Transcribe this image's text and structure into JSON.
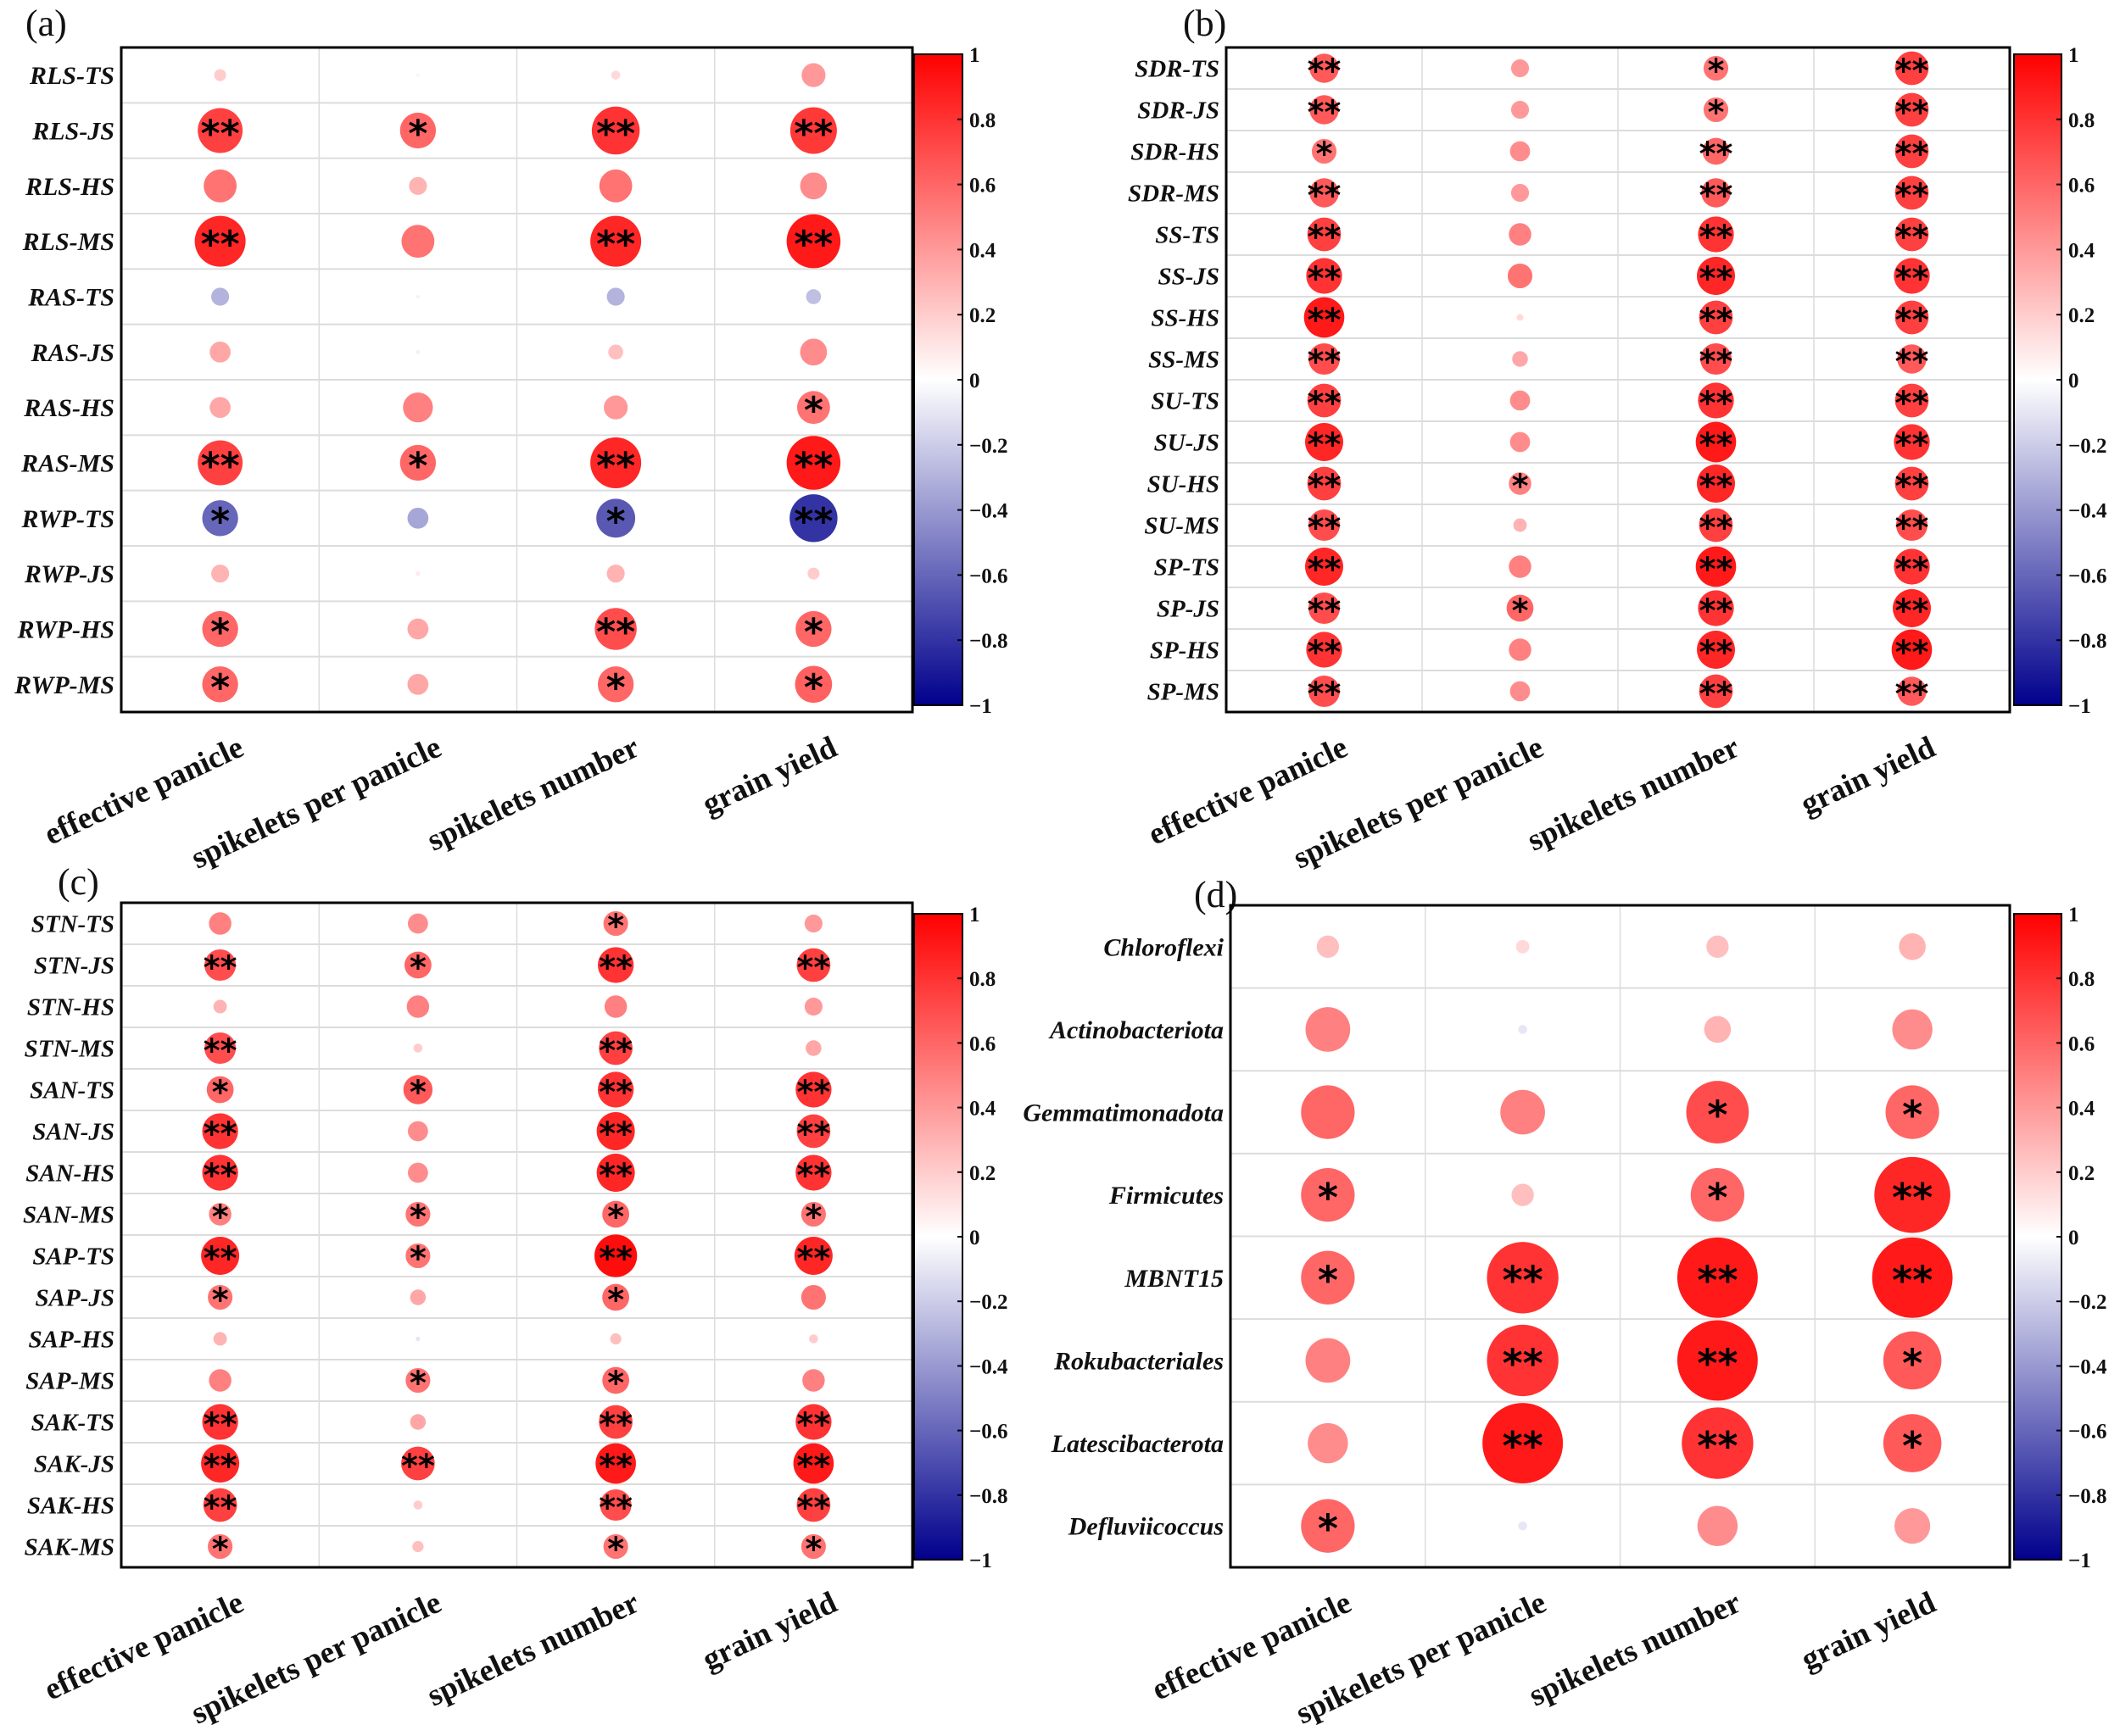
{
  "chart_data": [
    {
      "type": "bubble-correlation",
      "panel_label": "(a)",
      "columns": [
        "effective panicle",
        "spikelets per panicle",
        "spikelets number",
        "grain yield"
      ],
      "rows": [
        "RLS-TS",
        "RLS-JS",
        "RLS-HS",
        "RLS-MS",
        "RAS-TS",
        "RAS-JS",
        "RAS-HS",
        "RAS-MS",
        "RWP-TS",
        "RWP-JS",
        "RWP-HS",
        "RWP-MS"
      ],
      "values": [
        [
          0.2,
          0.05,
          0.15,
          0.4
        ],
        [
          0.75,
          0.6,
          0.8,
          0.78
        ],
        [
          0.55,
          0.3,
          0.55,
          0.45
        ],
        [
          0.85,
          0.55,
          0.85,
          0.9
        ],
        [
          -0.3,
          -0.05,
          -0.3,
          -0.25
        ],
        [
          0.35,
          0.07,
          0.25,
          0.45
        ],
        [
          0.35,
          0.5,
          0.4,
          0.55
        ],
        [
          0.75,
          0.6,
          0.85,
          0.9
        ],
        [
          -0.6,
          -0.35,
          -0.65,
          -0.8
        ],
        [
          0.3,
          0.08,
          0.3,
          0.2
        ],
        [
          0.6,
          0.35,
          0.7,
          0.6
        ],
        [
          0.6,
          0.35,
          0.6,
          0.62
        ]
      ],
      "significance": [
        [
          "",
          "",
          "",
          ""
        ],
        [
          "**",
          "*",
          "**",
          "**"
        ],
        [
          "",
          "",
          "",
          ""
        ],
        [
          "**",
          "",
          "**",
          "**"
        ],
        [
          "",
          "",
          "",
          ""
        ],
        [
          "",
          "",
          "",
          ""
        ],
        [
          "",
          "",
          "",
          "*"
        ],
        [
          "**",
          "*",
          "**",
          "**"
        ],
        [
          "*",
          "",
          "*",
          "**"
        ],
        [
          "",
          "",
          "",
          ""
        ],
        [
          "*",
          "",
          "**",
          "*"
        ],
        [
          "*",
          "",
          "*",
          "*"
        ]
      ],
      "colorbar": {
        "range": [
          -1,
          1
        ],
        "ticks": [
          "1",
          "0.8",
          "0.6",
          "0.4",
          "0.2",
          "0",
          "-0.2",
          "-0.4",
          "-0.6",
          "-0.8",
          "-1"
        ]
      }
    },
    {
      "type": "bubble-correlation",
      "panel_label": "(b)",
      "columns": [
        "effective panicle",
        "spikelets per panicle",
        "spikelets number",
        "grain yield"
      ],
      "rows": [
        "SDR-TS",
        "SDR-JS",
        "SDR-HS",
        "SDR-MS",
        "SS-TS",
        "SS-JS",
        "SS-HS",
        "SS-MS",
        "SU-TS",
        "SU-JS",
        "SU-HS",
        "SU-MS",
        "SP-TS",
        "SP-JS",
        "SP-HS",
        "SP-MS"
      ],
      "values": [
        [
          0.65,
          0.4,
          0.55,
          0.75
        ],
        [
          0.65,
          0.4,
          0.55,
          0.75
        ],
        [
          0.55,
          0.45,
          0.6,
          0.75
        ],
        [
          0.65,
          0.4,
          0.65,
          0.75
        ],
        [
          0.75,
          0.5,
          0.8,
          0.75
        ],
        [
          0.8,
          0.55,
          0.85,
          0.8
        ],
        [
          0.9,
          0.15,
          0.75,
          0.75
        ],
        [
          0.7,
          0.35,
          0.7,
          0.65
        ],
        [
          0.75,
          0.45,
          0.8,
          0.75
        ],
        [
          0.85,
          0.45,
          0.9,
          0.8
        ],
        [
          0.75,
          0.5,
          0.85,
          0.75
        ],
        [
          0.7,
          0.3,
          0.75,
          0.7
        ],
        [
          0.85,
          0.5,
          0.9,
          0.8
        ],
        [
          0.7,
          0.6,
          0.8,
          0.85
        ],
        [
          0.8,
          0.5,
          0.85,
          0.9
        ],
        [
          0.7,
          0.45,
          0.75,
          0.65
        ]
      ],
      "significance": [
        [
          "**",
          "",
          "*",
          "**"
        ],
        [
          "**",
          "",
          "*",
          "**"
        ],
        [
          "*",
          "",
          "**",
          "**"
        ],
        [
          "**",
          "",
          "**",
          "**"
        ],
        [
          "**",
          "",
          "**",
          "**"
        ],
        [
          "**",
          "",
          "**",
          "**"
        ],
        [
          "**",
          "",
          "**",
          "**"
        ],
        [
          "**",
          "",
          "**",
          "**"
        ],
        [
          "**",
          "",
          "**",
          "**"
        ],
        [
          "**",
          "",
          "**",
          "**"
        ],
        [
          "**",
          "*",
          "**",
          "**"
        ],
        [
          "**",
          "",
          "**",
          "**"
        ],
        [
          "**",
          "",
          "**",
          "**"
        ],
        [
          "**",
          "*",
          "**",
          "**"
        ],
        [
          "**",
          "",
          "**",
          "**"
        ],
        [
          "**",
          "",
          "**",
          "**"
        ]
      ],
      "colorbar": {
        "range": [
          -1,
          1
        ],
        "ticks": [
          "1",
          "0.8",
          "0.6",
          "0.4",
          "0.2",
          "0",
          "-0.2",
          "-0.4",
          "-0.6",
          "-0.8",
          "-1"
        ]
      }
    },
    {
      "type": "bubble-correlation",
      "panel_label": "(c)",
      "columns": [
        "effective panicle",
        "spikelets per panicle",
        "spikelets number",
        "grain yield"
      ],
      "rows": [
        "STN-TS",
        "STN-JS",
        "STN-HS",
        "STN-MS",
        "SAN-TS",
        "SAN-JS",
        "SAN-HS",
        "SAN-MS",
        "SAP-TS",
        "SAP-JS",
        "SAP-HS",
        "SAP-MS",
        "SAK-TS",
        "SAK-JS",
        "SAK-HS",
        "SAK-MS"
      ],
      "values": [
        [
          0.5,
          0.45,
          0.55,
          0.4
        ],
        [
          0.7,
          0.6,
          0.8,
          0.75
        ],
        [
          0.3,
          0.5,
          0.5,
          0.4
        ],
        [
          0.7,
          0.2,
          0.75,
          0.35
        ],
        [
          0.6,
          0.65,
          0.8,
          0.8
        ],
        [
          0.8,
          0.45,
          0.85,
          0.75
        ],
        [
          0.8,
          0.45,
          0.85,
          0.8
        ],
        [
          0.5,
          0.55,
          0.6,
          0.55
        ],
        [
          0.85,
          0.55,
          0.95,
          0.85
        ],
        [
          0.55,
          0.35,
          0.6,
          0.55
        ],
        [
          0.3,
          -0.1,
          0.25,
          0.2
        ],
        [
          0.5,
          0.55,
          0.6,
          0.5
        ],
        [
          0.8,
          0.35,
          0.75,
          0.8
        ],
        [
          0.85,
          0.75,
          0.9,
          0.9
        ],
        [
          0.75,
          0.2,
          0.7,
          0.75
        ],
        [
          0.55,
          0.25,
          0.55,
          0.55
        ]
      ],
      "significance": [
        [
          "",
          "",
          "*",
          ""
        ],
        [
          "**",
          "*",
          "**",
          "**"
        ],
        [
          "",
          "",
          "",
          ""
        ],
        [
          "**",
          "",
          "**",
          ""
        ],
        [
          "*",
          "*",
          "**",
          "**"
        ],
        [
          "**",
          "",
          "**",
          "**"
        ],
        [
          "**",
          "",
          "**",
          "**"
        ],
        [
          "*",
          "*",
          "*",
          "*"
        ],
        [
          "**",
          "*",
          "**",
          "**"
        ],
        [
          "*",
          "",
          "*",
          ""
        ],
        [
          "",
          "",
          "",
          ""
        ],
        [
          "",
          "*",
          "*",
          ""
        ],
        [
          "**",
          "",
          "**",
          "**"
        ],
        [
          "**",
          "**",
          "**",
          "**"
        ],
        [
          "**",
          "",
          "**",
          "**"
        ],
        [
          "*",
          "",
          "*",
          "*"
        ]
      ],
      "colorbar": {
        "range": [
          -1,
          1
        ],
        "ticks": [
          "1",
          "0.8",
          "0.6",
          "0.4",
          "0.2",
          "0",
          "-0.2",
          "-0.4",
          "-0.6",
          "-0.8",
          "-1"
        ]
      }
    },
    {
      "type": "bubble-correlation",
      "panel_label": "(d)",
      "columns": [
        "effective panicle",
        "spikelets per panicle",
        "spikelets number",
        "grain yield"
      ],
      "rows": [
        "Chloroflexi",
        "Actinobacteriota",
        "Gemmatimonadota",
        "Firmicutes",
        "MBNT15",
        "Rokubacteriales",
        "Latescibacterota",
        "Defluviicoccus"
      ],
      "values": [
        [
          0.25,
          0.15,
          0.25,
          0.3
        ],
        [
          0.5,
          -0.1,
          0.3,
          0.45
        ],
        [
          0.6,
          0.5,
          0.7,
          0.6
        ],
        [
          0.6,
          0.25,
          0.6,
          0.85
        ],
        [
          0.6,
          0.8,
          0.9,
          0.9
        ],
        [
          0.5,
          0.8,
          0.9,
          0.65
        ],
        [
          0.45,
          0.9,
          0.8,
          0.65
        ],
        [
          0.6,
          -0.1,
          0.45,
          0.4
        ]
      ],
      "significance": [
        [
          "",
          "",
          "",
          ""
        ],
        [
          "",
          "",
          "",
          ""
        ],
        [
          "",
          "",
          "*",
          "*"
        ],
        [
          "*",
          "",
          "*",
          "**"
        ],
        [
          "*",
          "**",
          "**",
          "**"
        ],
        [
          "",
          "**",
          "**",
          "*"
        ],
        [
          "",
          "**",
          "**",
          "*"
        ],
        [
          "*",
          "",
          "",
          ""
        ]
      ],
      "colorbar": {
        "range": [
          -1,
          1
        ],
        "ticks": [
          "1",
          "0.8",
          "0.6",
          "0.4",
          "0.2",
          "0",
          "-0.2",
          "-0.4",
          "-0.6",
          "-0.8",
          "-1"
        ]
      }
    }
  ]
}
